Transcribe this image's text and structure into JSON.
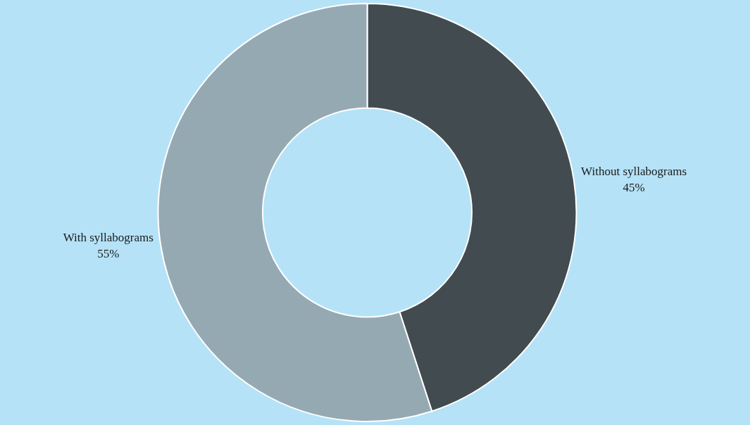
{
  "chart_data": {
    "type": "donut",
    "categories": [
      "Without syllabograms",
      "With syllabograms"
    ],
    "values": [
      45,
      55
    ],
    "value_labels": [
      "45%",
      "55%"
    ],
    "colors": [
      "#414b50",
      "#95a9b2"
    ],
    "legend": false
  }
}
